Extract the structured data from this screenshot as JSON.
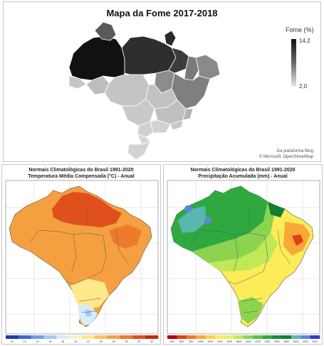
{
  "top_map": {
    "title": "Mapa da Fome 2017-2018",
    "legend": {
      "title": "Fome (%)",
      "max": "14,2",
      "min": "2,0"
    },
    "credit_line1": "Da plataforma Bing",
    "credit_line2": "© Microsoft, OpenStreetMap",
    "colors": {
      "darkest": "#111111",
      "dark": "#333333",
      "medium": "#8c8c8c",
      "light": "#b8b8b8",
      "lightest": "#d4d4d4"
    }
  },
  "left_map": {
    "title_line1": "Normais Climatológicas do Brasil 1991-2020",
    "title_line2": "Temperatura Média Compensada (°C) - Anual",
    "scale_labels": [
      "10",
      "12",
      "14",
      "16",
      "18",
      "20",
      "22",
      "24",
      "26",
      "28",
      "30",
      "32"
    ],
    "scale_colors": [
      "#1f3ca8",
      "#3d66d6",
      "#6f9de6",
      "#a6c9f0",
      "#d8ecf7",
      "#f5f5c8",
      "#fde98a",
      "#f9c45a",
      "#f5a040",
      "#ef7a2e",
      "#e0501c",
      "#c4280f"
    ]
  },
  "right_map": {
    "title_line1": "Normais Climatológicas do Brasil 1991-2020",
    "title_line2": "Precipitação Acumulada (mm) - Anual",
    "scale_labels": [
      "400",
      "600",
      "800",
      "1000",
      "1200",
      "1400",
      "1600",
      "1800",
      "2000",
      "2200",
      "2400",
      "2600",
      "2800",
      "3000",
      "3200",
      "3400"
    ],
    "scale_colors": [
      "#b00000",
      "#e04018",
      "#f07828",
      "#f8a838",
      "#fcd048",
      "#fcec58",
      "#e8f060",
      "#c0e858",
      "#8cd450",
      "#58c048",
      "#30a840",
      "#1a8c38",
      "#108030",
      "#58b8b0",
      "#5a86e0",
      "#2c3cc8"
    ]
  }
}
